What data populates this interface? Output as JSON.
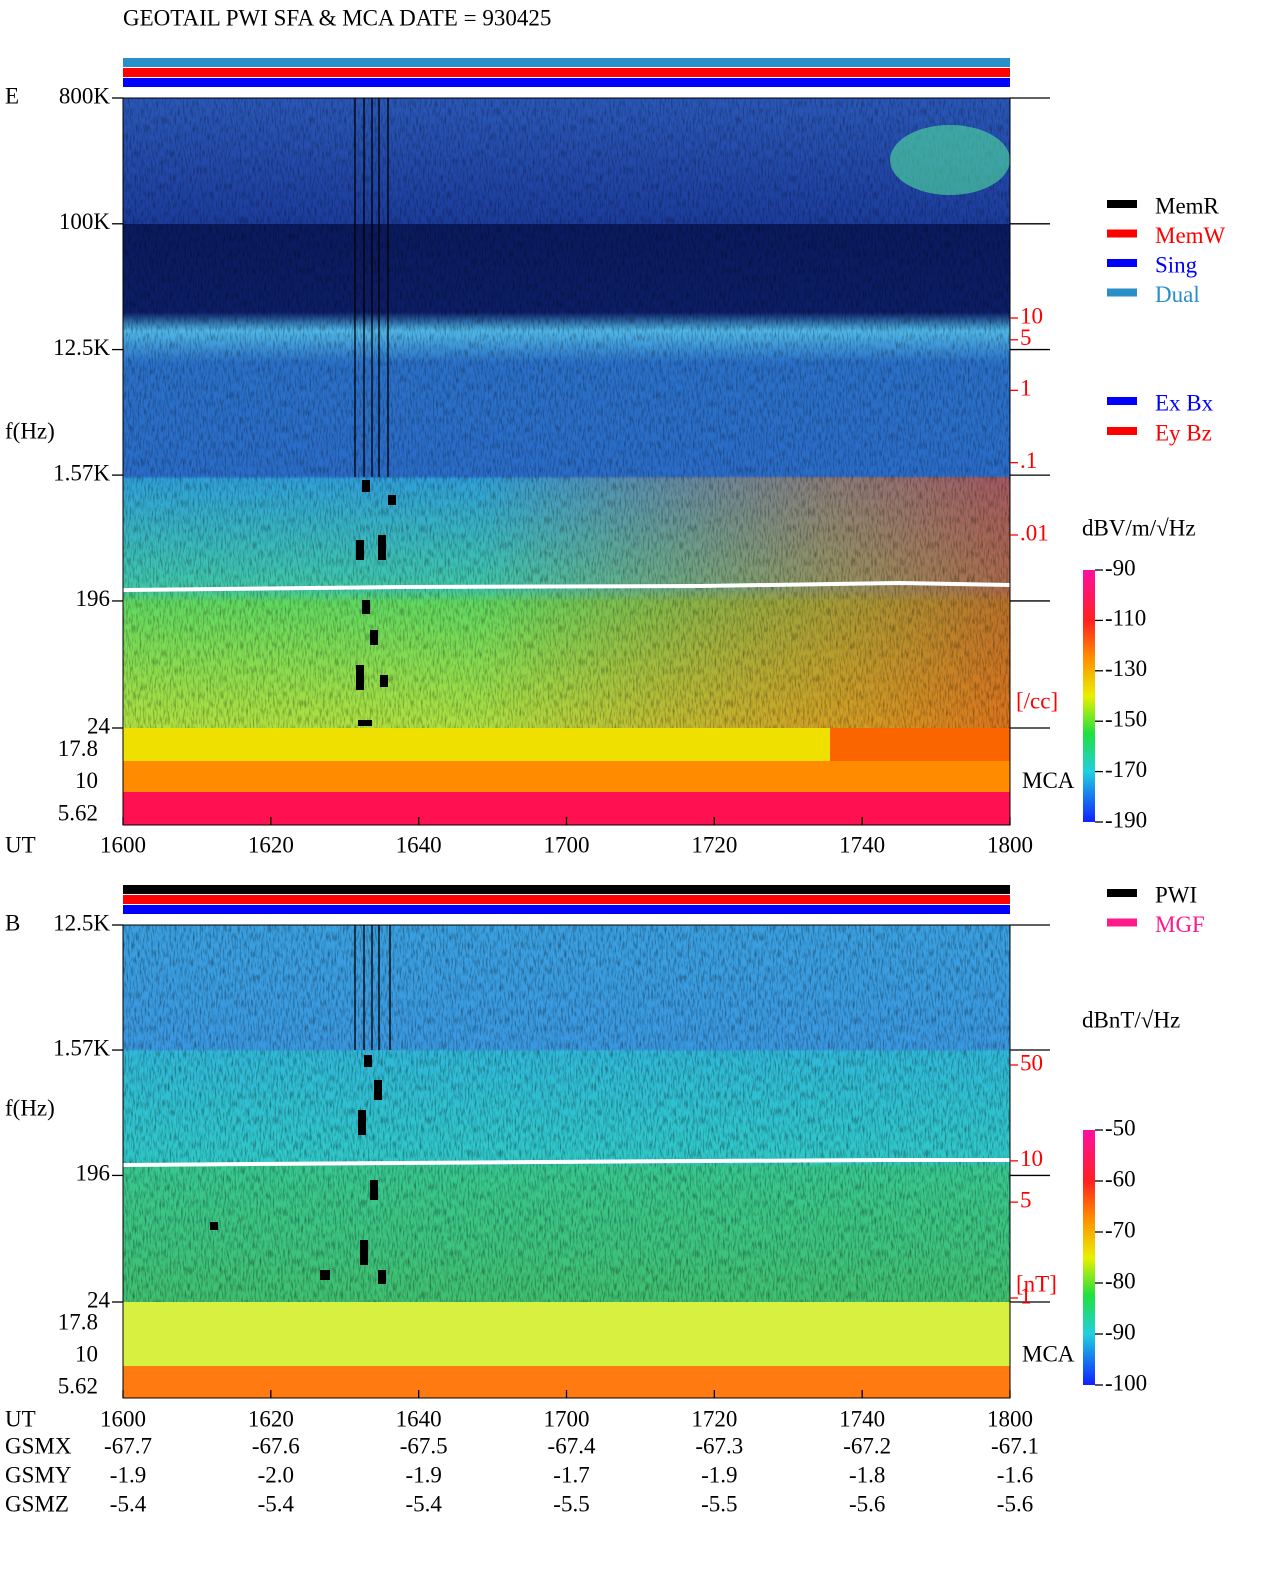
{
  "title": "GEOTAIL  PWI SFA & MCA   DATE = 930425",
  "chart_data": [
    {
      "type": "spectrogram",
      "panel": "E",
      "y_label": "f(Hz)",
      "log_y": true,
      "ylim": [
        24,
        800000
      ],
      "yticks": [
        {
          "value": 800000,
          "label": "800K"
        },
        {
          "value": 100000,
          "label": "100K"
        },
        {
          "value": 12500,
          "label": "12.5K"
        },
        {
          "value": 1570,
          "label": "1.57K"
        },
        196,
        24
      ],
      "mca_label": "MCA",
      "mca_channels": [
        17.8,
        10,
        5.62
      ],
      "x_label": "UT",
      "categories": [
        "1600",
        "1620",
        "1640",
        "1700",
        "1720",
        "1740",
        "1800"
      ],
      "mode_legend": [
        {
          "name": "MemR",
          "color": "#000000"
        },
        {
          "name": "MemW",
          "color": "#ff0000"
        },
        {
          "name": "Sing",
          "color": "#0000ff"
        },
        {
          "name": "Dual",
          "color": "#2a8fc8"
        }
      ],
      "component_legend": [
        {
          "name": "Ex Bx",
          "color": "#0000ff"
        },
        {
          "name": "Ey Bz",
          "color": "#ff0000"
        }
      ],
      "y2_label": "[/cc]",
      "y2_log": true,
      "y2lim": [
        0.01,
        10
      ],
      "y2ticks": [
        10,
        5,
        1,
        {
          "value": 0.1,
          "label": ".1"
        },
        {
          "value": 0.01,
          "label": ".01"
        }
      ],
      "colorbar_label": "dBV/m/√Hz",
      "clim": [
        -190,
        -90
      ],
      "cticks": [
        -90,
        -110,
        -130,
        -150,
        -170,
        -190
      ]
    },
    {
      "type": "spectrogram",
      "panel": "B",
      "y_label": "f(Hz)",
      "log_y": true,
      "ylim": [
        24,
        12500
      ],
      "yticks": [
        {
          "value": 12500,
          "label": "12.5K"
        },
        {
          "value": 1570,
          "label": "1.57K"
        },
        196,
        24
      ],
      "mca_label": "MCA",
      "mca_channels": [
        17.8,
        10,
        5.62
      ],
      "x_label": "UT",
      "categories": [
        "1600",
        "1620",
        "1640",
        "1700",
        "1720",
        "1740",
        "1800"
      ],
      "mode_legend": [
        {
          "name": "PWI",
          "color": "#000000"
        },
        {
          "name": "MGF",
          "color": "#ff1a8c"
        }
      ],
      "y2_label": "[nT]",
      "y2_log": true,
      "y2lim": [
        1,
        50
      ],
      "y2ticks": [
        50,
        10,
        5,
        1
      ],
      "colorbar_label": "dBnT/√Hz",
      "clim": [
        -100,
        -50
      ],
      "cticks": [
        -50,
        -60,
        -70,
        -80,
        -90,
        -100
      ]
    }
  ],
  "ephemeris": {
    "rows": [
      {
        "name": "GSMX",
        "values": [
          "-67.7",
          "-67.6",
          "-67.5",
          "-67.4",
          "-67.3",
          "-67.2",
          "-67.1"
        ]
      },
      {
        "name": "GSMY",
        "values": [
          "-1.9",
          "-2.0",
          "-1.9",
          "-1.7",
          "-1.9",
          "-1.8",
          "-1.6"
        ]
      },
      {
        "name": "GSMZ",
        "values": [
          "-5.4",
          "-5.4",
          "-5.4",
          "-5.5",
          "-5.5",
          "-5.6",
          "-5.6"
        ]
      }
    ]
  }
}
